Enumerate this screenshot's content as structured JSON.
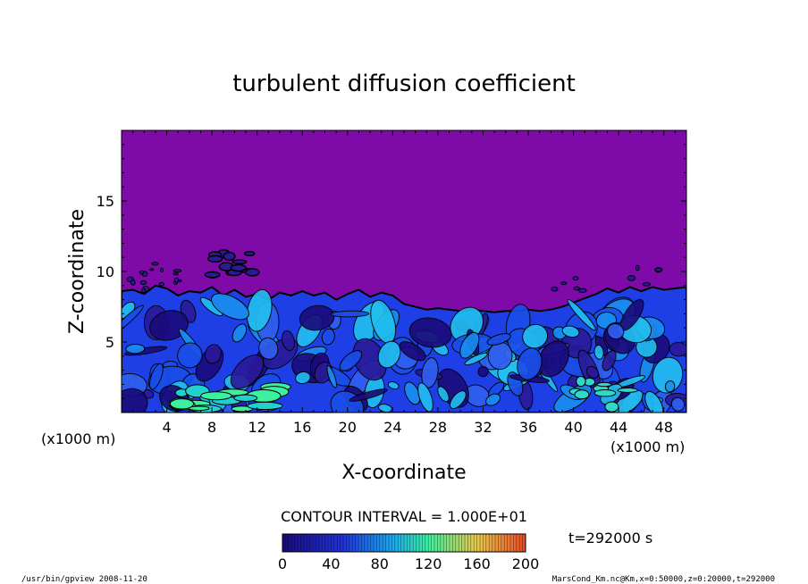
{
  "chart_data": {
    "type": "heatmap",
    "title": "turbulent diffusion coefficient",
    "xlabel": "X-coordinate",
    "ylabel": "Z-coordinate",
    "x_unit_left": "(x1000 m)",
    "x_unit_right": "(x1000 m)",
    "xlim": [
      0,
      50
    ],
    "ylim": [
      0,
      20
    ],
    "x_ticks": [
      4,
      8,
      12,
      16,
      20,
      24,
      28,
      32,
      36,
      40,
      44,
      48
    ],
    "y_ticks": [
      5,
      10,
      15
    ],
    "x_tick_labels": [
      "4",
      "8",
      "12",
      "16",
      "20",
      "24",
      "28",
      "32",
      "36",
      "40",
      "44",
      "48"
    ],
    "y_tick_labels": [
      "5",
      "10",
      "15"
    ],
    "contour_interval": "CONTOUR INTERVAL = 1.000E+01",
    "time_label": "t=292000 s",
    "colorbar": {
      "range": [
        0,
        200
      ],
      "ticks": [
        0,
        40,
        80,
        120,
        160,
        200
      ],
      "tick_labels": [
        "0",
        "40",
        "80",
        "120",
        "160",
        "200"
      ]
    },
    "turbulent_layer_top": [
      [
        0,
        8.6
      ],
      [
        1,
        8.7
      ],
      [
        2,
        8.4
      ],
      [
        3,
        9.0
      ],
      [
        4,
        8.8
      ],
      [
        5,
        8.3
      ],
      [
        6,
        8.6
      ],
      [
        7,
        8.5
      ],
      [
        8,
        8.9
      ],
      [
        9,
        8.3
      ],
      [
        10,
        8.7
      ],
      [
        11,
        8.2
      ],
      [
        12,
        8.4
      ],
      [
        13,
        8.0
      ],
      [
        14,
        8.5
      ],
      [
        15,
        8.3
      ],
      [
        16,
        8.6
      ],
      [
        17,
        8.3
      ],
      [
        18,
        8.5
      ],
      [
        19,
        8.0
      ],
      [
        20,
        8.4
      ],
      [
        21,
        8.7
      ],
      [
        22,
        8.2
      ],
      [
        23,
        8.5
      ],
      [
        24,
        8.3
      ],
      [
        25,
        7.7
      ],
      [
        26,
        7.5
      ],
      [
        27,
        7.3
      ],
      [
        28,
        7.4
      ],
      [
        29,
        7.3
      ],
      [
        30,
        7.2
      ],
      [
        31,
        7.3
      ],
      [
        32,
        7.2
      ],
      [
        33,
        7.1
      ],
      [
        34,
        7.2
      ],
      [
        35,
        7.2
      ],
      [
        36,
        7.3
      ],
      [
        37,
        7.2
      ],
      [
        38,
        7.3
      ],
      [
        39,
        7.5
      ],
      [
        40,
        7.8
      ],
      [
        41,
        8.1
      ],
      [
        42,
        8.4
      ],
      [
        43,
        8.8
      ],
      [
        44,
        8.5
      ],
      [
        45,
        8.9
      ],
      [
        46,
        8.6
      ],
      [
        47,
        8.9
      ],
      [
        48,
        8.7
      ],
      [
        49,
        8.8
      ],
      [
        50,
        8.9
      ]
    ],
    "notable_features": {
      "upper_patch_x": [
        8,
        12
      ],
      "upper_patch_z": [
        9.5,
        11.5
      ],
      "strong_mixing_near_surface_x": [
        5,
        14
      ]
    },
    "colors": {
      "background_field": "#7e0aa8",
      "low": "#1a0a7a",
      "mid_low": "#1f3fe6",
      "mid": "#1aa8f0",
      "mid_high": "#3cf0a0",
      "high": "#e84a2a"
    }
  },
  "footer": {
    "left": "/usr/bin/gpview   2008-11-20",
    "right": "MarsCond_Km.nc@Km,x=0:50000,z=0:20000,t=292000"
  }
}
